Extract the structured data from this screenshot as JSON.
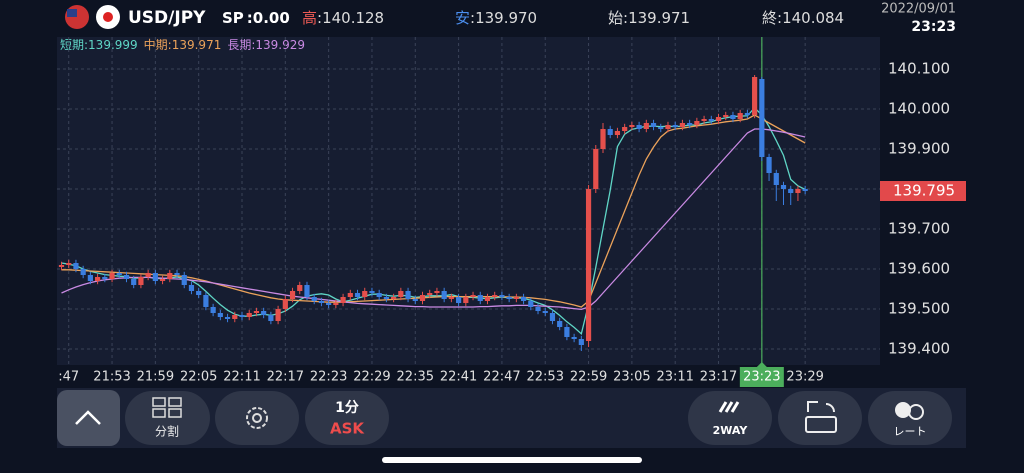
{
  "header": {
    "symbol": "USD/JPY",
    "spread_label": "SP",
    "spread": ":0.00",
    "high_label": "高",
    "high": ":140.128",
    "low_label": "安",
    "low": ":139.970",
    "open_label": "始",
    "open": ":139.971",
    "close_label": "終",
    "close": ":140.084",
    "date": "2022/09/01",
    "time": "23:23"
  },
  "chart_data": {
    "type": "candlestick",
    "categories": [
      null,
      ":47",
      null,
      null,
      null,
      null,
      null,
      "21:53",
      null,
      null,
      null,
      null,
      null,
      "21:59",
      null,
      null,
      null,
      null,
      null,
      "22:05",
      null,
      null,
      null,
      null,
      null,
      "22:11",
      null,
      null,
      null,
      null,
      null,
      "22:17",
      null,
      null,
      null,
      null,
      null,
      "22:23",
      null,
      null,
      null,
      null,
      null,
      "22:29",
      null,
      null,
      null,
      null,
      null,
      "22:35",
      null,
      null,
      null,
      null,
      null,
      "22:41",
      null,
      null,
      null,
      null,
      null,
      "22:47",
      null,
      null,
      null,
      null,
      null,
      "22:53",
      null,
      null,
      null,
      null,
      null,
      "22:59",
      null,
      null,
      null,
      null,
      null,
      "23:05",
      null,
      null,
      null,
      null,
      null,
      "23:11",
      null,
      null,
      null,
      null,
      null,
      "23:17",
      null,
      null,
      null,
      null,
      null,
      "23:23",
      null,
      null,
      null,
      null,
      null,
      "23:29"
    ],
    "open": [
      139.605,
      139.61,
      139.615,
      139.6,
      139.585,
      139.57,
      139.58,
      139.575,
      139.59,
      139.585,
      139.575,
      139.56,
      139.58,
      139.59,
      139.57,
      139.575,
      139.59,
      139.585,
      139.56,
      139.545,
      139.535,
      139.505,
      139.49,
      139.48,
      139.475,
      139.485,
      139.48,
      139.49,
      139.495,
      139.485,
      139.47,
      139.5,
      139.525,
      139.545,
      139.56,
      139.53,
      139.52,
      139.515,
      139.51,
      139.515,
      139.53,
      139.54,
      139.53,
      139.545,
      139.54,
      139.53,
      139.525,
      139.53,
      139.545,
      139.525,
      139.52,
      139.535,
      139.54,
      139.545,
      139.525,
      139.53,
      139.515,
      139.53,
      139.535,
      139.52,
      139.53,
      139.535,
      139.53,
      139.525,
      139.53,
      139.52,
      139.505,
      139.495,
      139.49,
      139.47,
      139.455,
      139.43,
      139.425,
      139.42,
      139.8,
      139.9,
      139.95,
      139.935,
      139.945,
      139.955,
      139.96,
      139.95,
      139.965,
      139.955,
      139.95,
      139.96,
      139.955,
      139.965,
      139.96,
      139.97,
      139.975,
      139.97,
      139.98,
      139.985,
      139.975,
      139.99,
      139.985,
      140.075,
      139.88,
      139.84,
      139.81,
      139.8,
      139.79,
      139.8
    ],
    "high": [
      139.618,
      139.623,
      139.623,
      139.608,
      139.593,
      139.588,
      139.588,
      139.598,
      139.598,
      139.593,
      139.583,
      139.588,
      139.598,
      139.598,
      139.583,
      139.598,
      139.598,
      139.593,
      139.568,
      139.553,
      139.543,
      139.513,
      139.498,
      139.488,
      139.493,
      139.493,
      139.498,
      139.503,
      139.503,
      139.493,
      139.508,
      139.533,
      139.553,
      139.568,
      139.568,
      139.538,
      139.528,
      139.523,
      139.523,
      139.538,
      139.548,
      139.548,
      139.553,
      139.553,
      139.548,
      139.538,
      139.538,
      139.553,
      139.553,
      139.533,
      139.543,
      139.548,
      139.553,
      139.553,
      139.538,
      139.538,
      139.538,
      139.543,
      139.543,
      139.538,
      139.543,
      139.543,
      139.538,
      139.538,
      139.538,
      139.528,
      139.513,
      139.503,
      139.498,
      139.478,
      139.463,
      139.438,
      139.433,
      139.81,
      139.91,
      139.965,
      139.958,
      139.953,
      139.963,
      139.968,
      139.968,
      139.973,
      139.973,
      139.963,
      139.968,
      139.968,
      139.973,
      139.973,
      139.978,
      139.983,
      139.983,
      139.988,
      139.993,
      139.993,
      139.998,
      139.998,
      140.085,
      140.08,
      139.888,
      139.848,
      139.818,
      139.808,
      139.808,
      139.808
    ],
    "low": [
      139.597,
      139.602,
      139.592,
      139.577,
      139.562,
      139.562,
      139.567,
      139.567,
      139.577,
      139.567,
      139.552,
      139.552,
      139.572,
      139.562,
      139.562,
      139.567,
      139.577,
      139.552,
      139.537,
      139.527,
      139.497,
      139.482,
      139.472,
      139.467,
      139.467,
      139.472,
      139.472,
      139.482,
      139.477,
      139.462,
      139.462,
      139.492,
      139.517,
      139.537,
      139.522,
      139.512,
      139.507,
      139.502,
      139.502,
      139.507,
      139.522,
      139.522,
      139.522,
      139.532,
      139.522,
      139.517,
      139.517,
      139.522,
      139.517,
      139.512,
      139.512,
      139.527,
      139.532,
      139.517,
      139.517,
      139.507,
      139.507,
      139.522,
      139.512,
      139.512,
      139.522,
      139.522,
      139.517,
      139.517,
      139.512,
      139.497,
      139.487,
      139.482,
      139.462,
      139.447,
      139.422,
      139.417,
      139.395,
      139.405,
      139.79,
      139.89,
      139.927,
      139.927,
      139.937,
      139.947,
      139.942,
      139.942,
      139.947,
      139.942,
      139.942,
      139.947,
      139.947,
      139.952,
      139.952,
      139.962,
      139.962,
      139.962,
      139.972,
      139.967,
      139.967,
      139.977,
      139.977,
      139.87,
      139.82,
      139.77,
      139.76,
      139.76,
      139.77,
      139.787
    ],
    "close": [
      139.61,
      139.615,
      139.6,
      139.585,
      139.57,
      139.58,
      139.575,
      139.59,
      139.585,
      139.575,
      139.56,
      139.58,
      139.59,
      139.57,
      139.575,
      139.59,
      139.585,
      139.56,
      139.545,
      139.535,
      139.505,
      139.49,
      139.48,
      139.475,
      139.485,
      139.48,
      139.49,
      139.495,
      139.485,
      139.47,
      139.5,
      139.525,
      139.545,
      139.56,
      139.53,
      139.52,
      139.515,
      139.51,
      139.515,
      139.53,
      139.54,
      139.53,
      139.545,
      139.54,
      139.53,
      139.525,
      139.53,
      139.545,
      139.525,
      139.52,
      139.535,
      139.54,
      139.545,
      139.525,
      139.53,
      139.515,
      139.53,
      139.535,
      139.52,
      139.53,
      139.535,
      139.53,
      139.525,
      139.53,
      139.52,
      139.505,
      139.495,
      139.49,
      139.47,
      139.455,
      139.43,
      139.425,
      139.41,
      139.8,
      139.9,
      139.95,
      139.935,
      139.945,
      139.955,
      139.96,
      139.95,
      139.965,
      139.955,
      139.95,
      139.96,
      139.955,
      139.965,
      139.96,
      139.97,
      139.975,
      139.97,
      139.98,
      139.985,
      139.975,
      139.99,
      139.985,
      140.08,
      139.88,
      139.84,
      139.81,
      139.8,
      139.79,
      139.8,
      139.795
    ],
    "up_color": "#e5504c",
    "down_color": "#3b7ee0",
    "series": [
      {
        "name": "短期:139.999",
        "color": "#5fd6c6",
        "values": [
          139.615,
          139.612,
          139.608,
          139.6,
          139.594,
          139.59,
          139.586,
          139.584,
          139.582,
          139.581,
          139.577,
          139.578,
          139.58,
          139.576,
          139.576,
          139.578,
          139.58,
          139.576,
          139.571,
          139.56,
          139.544,
          139.527,
          139.511,
          139.497,
          139.487,
          139.482,
          139.482,
          139.485,
          139.487,
          139.484,
          139.488,
          139.495,
          139.507,
          139.523,
          139.532,
          139.536,
          139.538,
          139.535,
          139.525,
          139.518,
          139.522,
          139.527,
          139.532,
          139.537,
          139.537,
          139.534,
          139.532,
          139.534,
          139.533,
          139.529,
          139.531,
          139.533,
          139.533,
          139.533,
          139.536,
          139.531,
          139.529,
          139.529,
          139.527,
          139.526,
          139.528,
          139.53,
          139.528,
          139.528,
          139.527,
          139.522,
          139.515,
          139.509,
          139.498,
          139.484,
          139.468,
          139.454,
          139.438,
          139.512,
          139.604,
          139.701,
          139.797,
          139.906,
          139.937,
          139.949,
          139.953,
          139.957,
          139.957,
          139.956,
          139.957,
          139.956,
          139.957,
          139.96,
          139.96,
          139.965,
          139.968,
          139.974,
          139.978,
          139.981,
          139.982,
          139.983,
          140.003,
          139.985,
          139.956,
          139.921,
          139.884,
          139.824,
          139.808,
          139.799
        ]
      },
      {
        "name": "中期:139.971",
        "color": "#eba25a",
        "values": [
          139.598,
          139.598,
          139.597,
          139.596,
          139.595,
          139.594,
          139.593,
          139.592,
          139.591,
          139.59,
          139.589,
          139.588,
          139.587,
          139.586,
          139.585,
          139.584,
          139.583,
          139.581,
          139.578,
          139.574,
          139.57,
          139.565,
          139.56,
          139.555,
          139.55,
          139.545,
          139.54,
          139.536,
          139.532,
          139.528,
          139.525,
          139.523,
          139.522,
          139.521,
          139.52,
          139.519,
          139.518,
          139.517,
          139.517,
          139.517,
          139.518,
          139.519,
          139.52,
          139.521,
          139.522,
          139.523,
          139.524,
          139.525,
          139.526,
          139.527,
          139.528,
          139.529,
          139.53,
          139.531,
          139.531,
          139.531,
          139.531,
          139.531,
          139.531,
          139.531,
          139.531,
          139.531,
          139.53,
          139.53,
          139.529,
          139.528,
          139.526,
          139.524,
          139.521,
          139.518,
          139.514,
          139.51,
          139.505,
          139.52,
          139.565,
          139.61,
          139.655,
          139.7,
          139.745,
          139.79,
          139.835,
          139.875,
          139.905,
          139.93,
          139.945,
          139.95,
          139.952,
          139.955,
          139.958,
          139.96,
          139.962,
          139.965,
          139.968,
          139.97,
          139.972,
          139.975,
          139.985,
          139.975,
          139.965,
          139.955,
          139.945,
          139.935,
          139.925,
          139.915
        ]
      },
      {
        "name": "長期:139.929",
        "color": "#c98ae3",
        "values": [
          139.54,
          139.548,
          139.555,
          139.561,
          139.566,
          139.57,
          139.573,
          139.575,
          139.577,
          139.578,
          139.579,
          139.579,
          139.579,
          139.578,
          139.577,
          139.576,
          139.575,
          139.574,
          139.572,
          139.57,
          139.568,
          139.565,
          139.562,
          139.559,
          139.556,
          139.553,
          139.55,
          139.547,
          139.544,
          139.541,
          139.538,
          139.535,
          139.532,
          139.53,
          139.528,
          139.526,
          139.524,
          139.522,
          139.52,
          139.518,
          139.516,
          139.514,
          139.513,
          139.512,
          139.511,
          139.51,
          139.509,
          139.508,
          139.507,
          139.506,
          139.506,
          139.505,
          139.505,
          139.505,
          139.505,
          139.505,
          139.505,
          139.505,
          139.506,
          139.506,
          139.507,
          139.508,
          139.508,
          139.509,
          139.509,
          139.509,
          139.508,
          139.507,
          139.506,
          139.505,
          139.503,
          139.501,
          139.499,
          139.505,
          139.52,
          139.54,
          139.56,
          139.58,
          139.6,
          139.62,
          139.64,
          139.66,
          139.68,
          139.7,
          139.72,
          139.74,
          139.76,
          139.78,
          139.8,
          139.82,
          139.84,
          139.86,
          139.88,
          139.9,
          139.92,
          139.94,
          139.95,
          139.95,
          139.948,
          139.945,
          139.942,
          139.938,
          139.934,
          139.93
        ]
      }
    ],
    "ylim": [
      139.36,
      140.18
    ],
    "yticks": [
      {
        "value": 139.4,
        "label": "139.400"
      },
      {
        "value": 139.5,
        "label": "139.500"
      },
      {
        "value": 139.6,
        "label": "139.600"
      },
      {
        "value": 139.7,
        "label": "139.700"
      },
      {
        "value": 139.8,
        "label": "139.800"
      },
      {
        "value": 139.9,
        "label": "139.900"
      },
      {
        "value": 140,
        "label": "140.000"
      },
      {
        "value": 140.1,
        "label": "140.100"
      }
    ],
    "grid": true,
    "current_price": 139.795,
    "crosshair": "23:23"
  },
  "toolbar": {
    "split": "分割",
    "interval": "1分",
    "side": "ASK",
    "mode": "2WAY",
    "rate": "レート"
  }
}
